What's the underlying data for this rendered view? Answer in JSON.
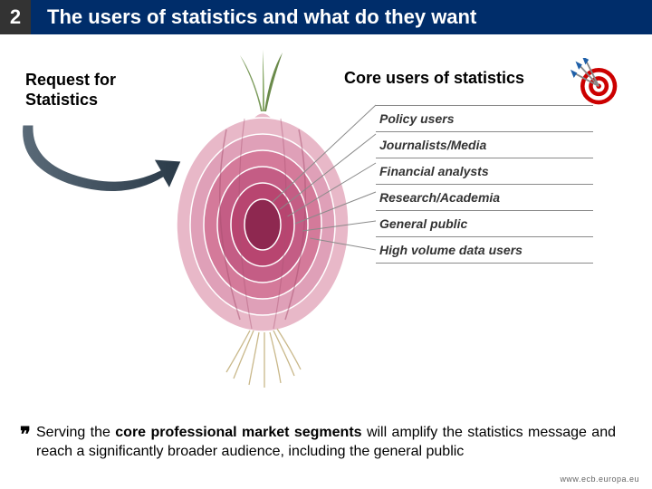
{
  "section_number": "2",
  "title": "The users of statistics and what do they want",
  "request_label_line1": "Request for",
  "request_label_line2": "Statistics",
  "core_heading": "Core users of statistics",
  "user_categories": [
    "Policy users",
    "Journalists/Media",
    "Financial analysts",
    "Research/Academia",
    "General public",
    "High volume data users"
  ],
  "bullet_prefix": "Serving the ",
  "bullet_bold": "core professional market segments",
  "bullet_suffix": " will amplify the statistics message and reach a significantly broader audience,  including the general public",
  "footer_url": "www.ecb.europa.eu",
  "colors": {
    "title_bg": "#002d6a",
    "number_bg": "#333333",
    "onion_outer": "#e8b8c8",
    "onion_mid": "#d47a9a",
    "onion_inner": "#b84570",
    "onion_core": "#8e2850",
    "leaf": "#7a9a5a",
    "arrow": "#3a4a5a",
    "target_red": "#cc0000",
    "dart_blue": "#1e5fa8",
    "divider": "#8a8a8a"
  },
  "onion": {
    "layers": 6,
    "radii_x": [
      95,
      80,
      65,
      50,
      35,
      20
    ],
    "radii_y": [
      118,
      100,
      82,
      64,
      46,
      28
    ],
    "fills": [
      "#e8b8c8",
      "#dfa0b8",
      "#d47a9a",
      "#c45d85",
      "#b84570",
      "#8e2850"
    ]
  }
}
